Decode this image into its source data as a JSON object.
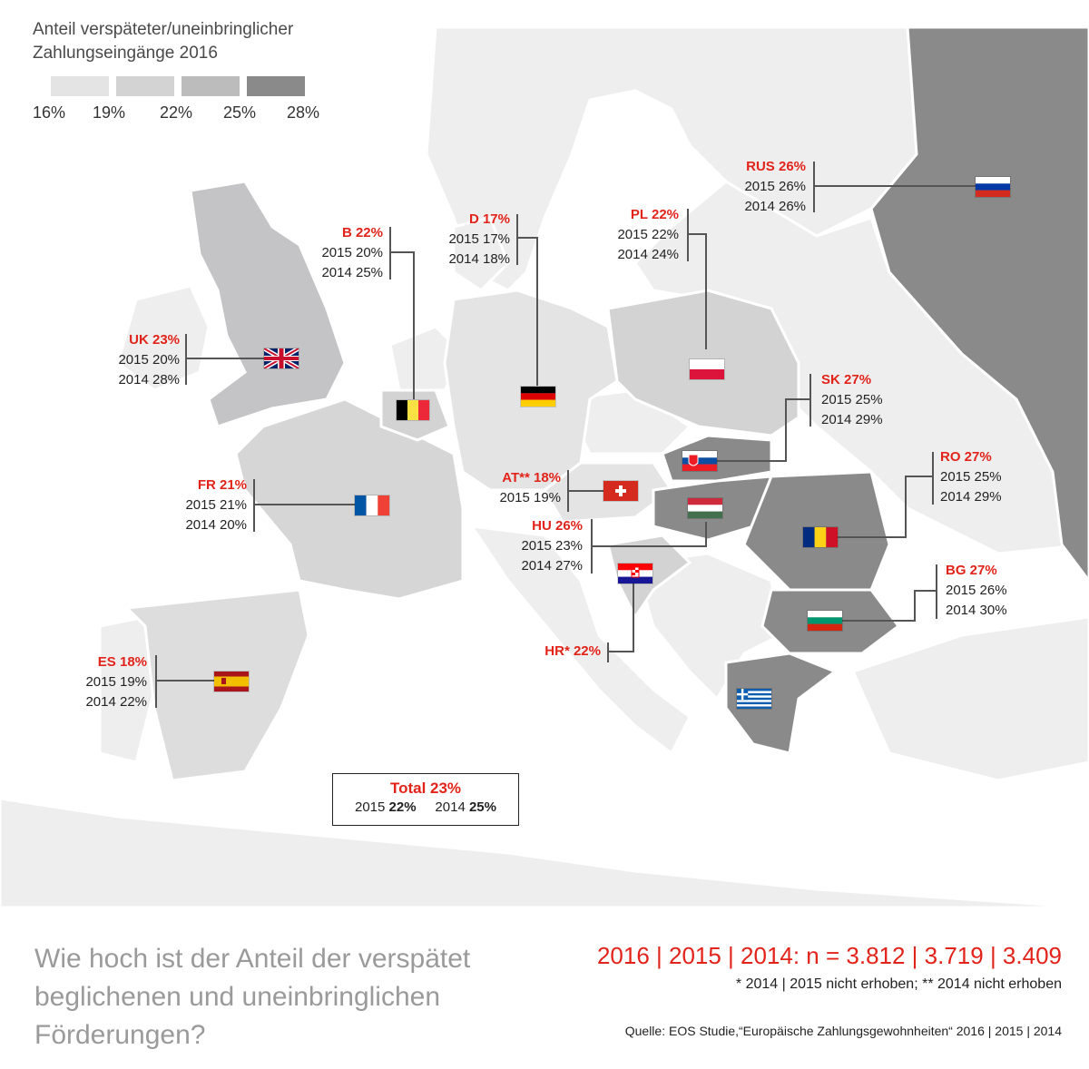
{
  "legend": {
    "title_line1": "Anteil verspäteter/uneinbringlicher",
    "title_line2": "Zahlungseingänge 2016",
    "ticks": [
      "16%",
      "19%",
      "22%",
      "25%",
      "28%"
    ],
    "colors": [
      "#e4e4e4",
      "#d3d3d4",
      "#bcbcbd",
      "#8a8a8b"
    ]
  },
  "countries": {
    "uk": {
      "cur": "UK 23%",
      "y2015": "2015 20%",
      "y2014": "2014 28%"
    },
    "b": {
      "cur": "B 22%",
      "y2015": "2015 20%",
      "y2014": "2014 25%"
    },
    "d": {
      "cur": "D 17%",
      "y2015": "2015 17%",
      "y2014": "2014 18%"
    },
    "pl": {
      "cur": "PL 22%",
      "y2015": "2015 22%",
      "y2014": "2014 24%"
    },
    "rus": {
      "cur": "RUS 26%",
      "y2015": "2015 26%",
      "y2014": "2014 26%"
    },
    "sk": {
      "cur": "SK 27%",
      "y2015": "2015 25%",
      "y2014": "2014 29%"
    },
    "fr": {
      "cur": "FR 21%",
      "y2015": "2015 21%",
      "y2014": "2014 20%"
    },
    "at": {
      "cur": "AT** 18%",
      "y2015": "2015 19%"
    },
    "hu": {
      "cur": "HU 26%",
      "y2015": "2015 23%",
      "y2014": "2014 27%"
    },
    "ro": {
      "cur": "RO 27%",
      "y2015": "2015 25%",
      "y2014": "2014 29%"
    },
    "bg": {
      "cur": "BG 27%",
      "y2015": "2015 26%",
      "y2014": "2014 30%"
    },
    "hr": {
      "cur": "HR* 22%"
    },
    "es": {
      "cur": "ES 18%",
      "y2015": "2015 19%",
      "y2014": "2014 22%"
    }
  },
  "total": {
    "title": "Total 23%",
    "y2015_label": "2015",
    "y2015_value": "22%",
    "y2014_label": "2014",
    "y2014_value": "25%"
  },
  "footer": {
    "question": "Wie hoch ist der Anteil der verspätet beglichenen und uneinbringlichen Förderungen?",
    "sample": "2016 | 2015 | 2014: n = 3.812 | 3.719 | 3.409",
    "notes": "* 2014 | 2015 nicht erhoben; ** 2014 nicht erhoben",
    "source": "Quelle: EOS Studie,“Europäische Zahlungsgewohnheiten“ 2016 | 2015 | 2014"
  }
}
